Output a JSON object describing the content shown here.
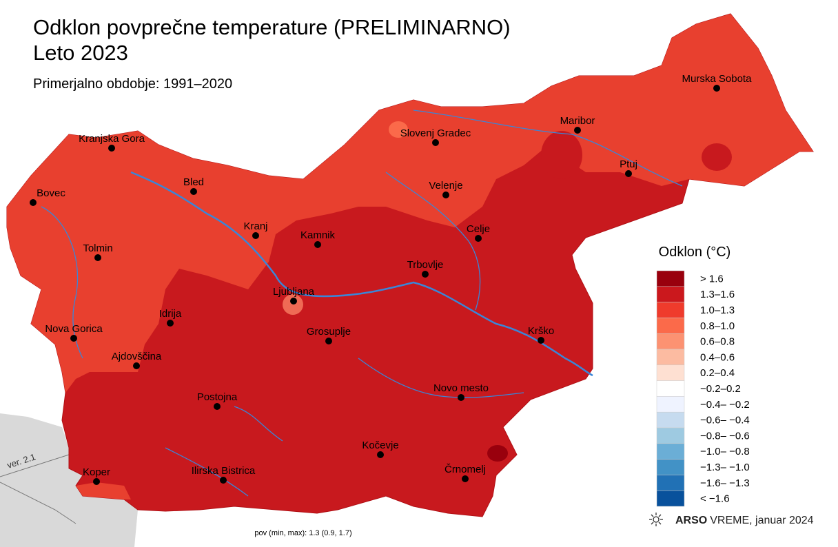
{
  "header": {
    "title": "Odklon povprečne temperature (PRELIMINARNO)",
    "subtitle": "Leto 2023",
    "reference": "Primerjalno obdobje: 1991–2020"
  },
  "cities": [
    "Murska Sobota",
    "Maribor",
    "Ptuj",
    "Slovenj Gradec",
    "Velenje",
    "Celje",
    "Kranjska Gora",
    "Bled",
    "Bovec",
    "Kranj",
    "Kamnik",
    "Tolmin",
    "Trbovlje",
    "Ljubljana",
    "Idrija",
    "Nova Gorica",
    "Grosuplje",
    "Krško",
    "Ajdovščina",
    "Novo mesto",
    "Postojna",
    "Kočevje",
    "Koper",
    "Ilirska Bistrica",
    "Črnomelj"
  ],
  "legend": {
    "title": "Odklon (°C)",
    "items": [
      {
        "label": "> 1.6",
        "color": "#99000d"
      },
      {
        "label": "1.3–1.6",
        "color": "#cb181d"
      },
      {
        "label": "1.0–1.3",
        "color": "#ef3b2c"
      },
      {
        "label": "0.8–1.0",
        "color": "#fb6a4a"
      },
      {
        "label": "0.6–0.8",
        "color": "#fc9272"
      },
      {
        "label": "0.4–0.6",
        "color": "#fcbba1"
      },
      {
        "label": "0.2–0.4",
        "color": "#fee0d2"
      },
      {
        "label": "−0.2–0.2",
        "color": "#ffffff"
      },
      {
        "label": "−0.4– −0.2",
        "color": "#eff3ff"
      },
      {
        "label": "−0.6– −0.4",
        "color": "#c6dbef"
      },
      {
        "label": "−0.8– −0.6",
        "color": "#9ecae1"
      },
      {
        "label": "−1.0– −0.8",
        "color": "#6baed6"
      },
      {
        "label": "−1.3– −1.0",
        "color": "#4292c6"
      },
      {
        "label": "−1.6– −1.3",
        "color": "#2171b5"
      },
      {
        "label": "< −1.6",
        "color": "#08519c"
      }
    ]
  },
  "footer": {
    "stats": "pov (min, max): 1.3 (0.9, 1.7)",
    "version": "ver. 2.1",
    "brand_bold": "ARSO",
    "brand": "VREME",
    "date": ", januar 2024"
  }
}
